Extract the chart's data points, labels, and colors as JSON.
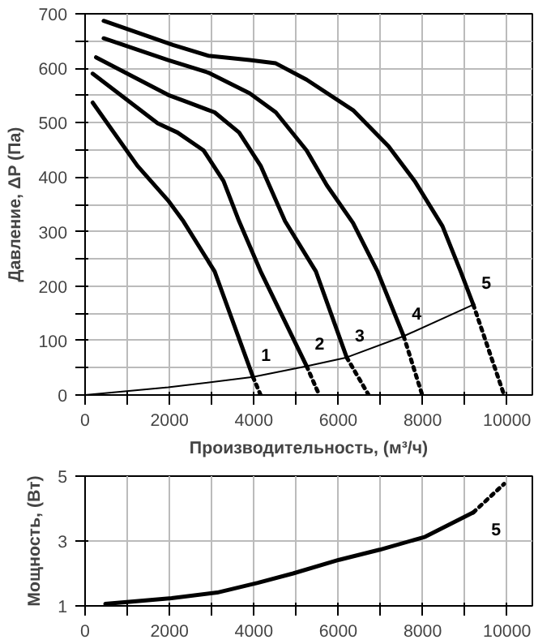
{
  "chart_data": [
    {
      "type": "line",
      "xlabel": "Производительность, (м³/ч)",
      "ylabel": "Давление, ΔP (Па)",
      "xlim": [
        0,
        10600
      ],
      "ylim": [
        0,
        700
      ],
      "xticks": [
        0,
        {
          "value": 1000,
          "label": null
        },
        2000,
        {
          "value": 3000,
          "label": null
        },
        4000,
        {
          "value": 5000,
          "label": null
        },
        6000,
        {
          "value": 7000,
          "label": null
        },
        8000,
        {
          "value": 9000,
          "label": null
        },
        10000
      ],
      "yticks": [
        0,
        {
          "value": 50,
          "label": null
        },
        100,
        {
          "value": 150,
          "label": null
        },
        200,
        {
          "value": 250,
          "label": null
        },
        300,
        {
          "value": 350,
          "label": null
        },
        400,
        {
          "value": 450,
          "label": null
        },
        500,
        {
          "value": 550,
          "label": null
        },
        600,
        {
          "value": 650,
          "label": null
        },
        700
      ],
      "grid": true,
      "marker": "none",
      "series": [
        {
          "color": "#000000",
          "line_style": "solid",
          "x": [
            440,
            2080,
            2920,
            3900,
            4520,
            5250,
            6350,
            7190,
            7810,
            8470,
            8900,
            9200
          ],
          "values": [
            687,
            643,
            623,
            615,
            609,
            579,
            523,
            457,
            393,
            310,
            227,
            166
          ]
        },
        {
          "color": "#000000",
          "line_style": "dotted",
          "x": [
            9200,
            9930
          ],
          "values": [
            166,
            0
          ]
        },
        {
          "color": "#000000",
          "line_style": "solid",
          "x": [
            440,
            1970,
            2920,
            3900,
            4520,
            5250,
            5730,
            6350,
            6930,
            7550
          ],
          "values": [
            655,
            615,
            592,
            554,
            519,
            449,
            385,
            316,
            227,
            108
          ]
        },
        {
          "color": "#000000",
          "line_style": "dotted",
          "x": [
            7550,
            7990
          ],
          "values": [
            108,
            0
          ]
        },
        {
          "color": "#000000",
          "line_style": "solid",
          "x": [
            260,
            1970,
            2450,
            3070,
            3650,
            4160,
            4740,
            5470,
            6200
          ],
          "values": [
            620,
            551,
            537,
            519,
            482,
            421,
            319,
            227,
            69
          ]
        },
        {
          "color": "#000000",
          "line_style": "dotted",
          "x": [
            6200,
            6720
          ],
          "values": [
            69,
            0
          ]
        },
        {
          "color": "#000000",
          "line_style": "solid",
          "x": [
            180,
            1720,
            2190,
            2810,
            3280,
            3650,
            4160,
            5250
          ],
          "values": [
            590,
            499,
            482,
            449,
            393,
            319,
            227,
            53
          ]
        },
        {
          "color": "#000000",
          "line_style": "dotted",
          "x": [
            5250,
            5550
          ],
          "values": [
            53,
            0
          ]
        },
        {
          "color": "#000000",
          "line_style": "solid",
          "x": [
            180,
            1240,
            1970,
            2330,
            3070,
            3980
          ],
          "values": [
            537,
            421,
            357,
            319,
            227,
            33
          ]
        },
        {
          "color": "#000000",
          "line_style": "dotted",
          "x": [
            3980,
            4160
          ],
          "values": [
            33,
            0
          ]
        },
        {
          "color": "#000000",
          "line_style": "solid",
          "x": [
            0,
            1970,
            3980,
            5250,
            6200,
            7550,
            9200
          ],
          "values": [
            0,
            14,
            33,
            53,
            69,
            108,
            166
          ]
        }
      ],
      "annotations": [
        {
          "text": "1",
          "x": 3980,
          "y": 33
        },
        {
          "text": "2",
          "x": 5250,
          "y": 53
        },
        {
          "text": "3",
          "x": 6200,
          "y": 69
        },
        {
          "text": "4",
          "x": 7550,
          "y": 108
        },
        {
          "text": "5",
          "x": 9200,
          "y": 166
        }
      ]
    },
    {
      "type": "line",
      "ylabel": "Мощность, (Вт)",
      "xlim": [
        0,
        10600
      ],
      "ylim": [
        1,
        5
      ],
      "xticks": [
        0,
        {
          "value": 1000,
          "label": null
        },
        2000,
        {
          "value": 3000,
          "label": null
        },
        4000,
        {
          "value": 5000,
          "label": null
        },
        6000,
        {
          "value": 7000,
          "label": null
        },
        8000,
        {
          "value": 9000,
          "label": null
        },
        10000
      ],
      "yticks": [
        1,
        3,
        5
      ],
      "grid": true,
      "marker": "none",
      "series": [
        {
          "color": "#000000",
          "line_style": "solid",
          "x": [
            480,
            2050,
            3130,
            4090,
            4930,
            6020,
            6980,
            8060,
            9200
          ],
          "values": [
            1.06,
            1.24,
            1.41,
            1.71,
            2.0,
            2.42,
            2.73,
            3.13,
            3.88
          ]
        },
        {
          "color": "#000000",
          "line_style": "dotted",
          "x": [
            9200,
            9930
          ],
          "values": [
            3.88,
            4.76
          ]
        }
      ],
      "annotations": [
        {
          "text": "5",
          "x": 9200,
          "y": 3.88
        }
      ]
    }
  ]
}
